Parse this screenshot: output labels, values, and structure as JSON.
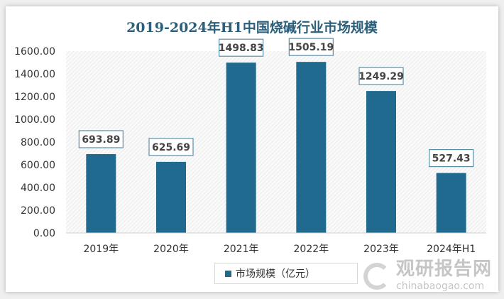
{
  "chart_data": {
    "type": "bar",
    "title": "2019-2024年H1中国烧碱行业市场规模",
    "categories": [
      "2019年",
      "2020年",
      "2021年",
      "2022年",
      "2023年",
      "2024年H1"
    ],
    "series": [
      {
        "name": "市场规模（亿元）",
        "values": [
          693.89,
          625.69,
          1498.83,
          1505.19,
          1249.29,
          527.43
        ]
      }
    ],
    "data_labels": [
      "693.89",
      "625.69",
      "1498.83",
      "1505.19",
      "1249.29",
      "527.43"
    ],
    "ylim": [
      0,
      1600
    ],
    "yticks": [
      "0.00",
      "200.00",
      "400.00",
      "600.00",
      "800.00",
      "1000.00",
      "1200.00",
      "1400.00",
      "1600.00"
    ],
    "xlabel": "",
    "ylabel": "",
    "legend": "bottom",
    "bar_color": "#1f6a8e"
  },
  "watermark": {
    "cn": "观研报告网",
    "en": "chinabaogao.com"
  }
}
